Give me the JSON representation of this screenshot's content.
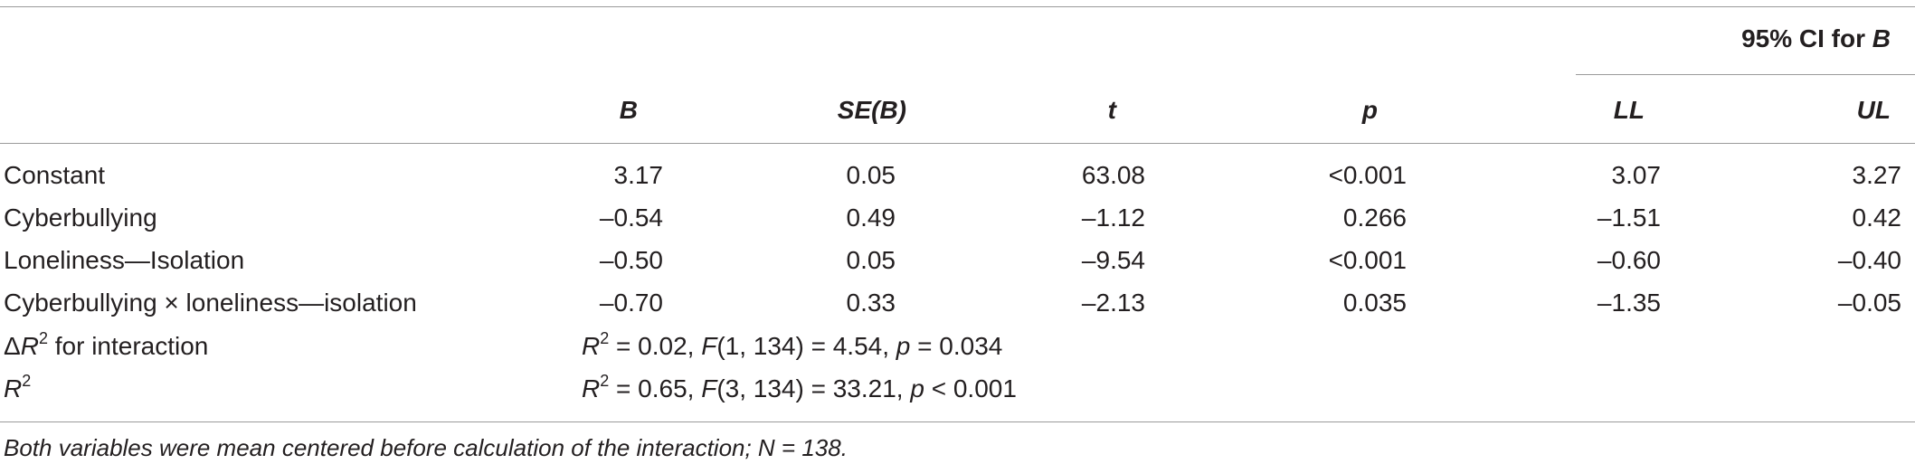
{
  "table": {
    "header": {
      "ci_group": [
        "95% CI for ",
        "B"
      ],
      "columns": [
        "B",
        "SE(B)",
        "t",
        "p",
        "LL",
        "UL"
      ]
    },
    "rows": [
      {
        "label": "Constant",
        "cells": [
          "3.17",
          "0.05",
          "63.08",
          "<0.001",
          "3.07",
          "3.27"
        ]
      },
      {
        "label": "Cyberbullying",
        "cells": [
          "–0.54",
          "0.49",
          "–1.12",
          "0.266",
          "–1.51",
          "0.42"
        ]
      },
      {
        "label": "Loneliness—Isolation",
        "cells": [
          "–0.50",
          "0.05",
          "–9.54",
          "<0.001",
          "–0.60",
          "–0.40"
        ]
      },
      {
        "label": "Cyberbullying × loneliness—isolation",
        "cells": [
          "–0.70",
          "0.33",
          "–2.13",
          "0.035",
          "–1.35",
          "–0.05"
        ]
      }
    ],
    "summary_rows": [
      {
        "label": [
          "Δ",
          "R",
          "2",
          " for interaction"
        ],
        "text": [
          "R",
          "2",
          " = 0.02, ",
          "F",
          "(1, 134) = 4.54, ",
          "p",
          " = 0.034"
        ]
      },
      {
        "label": [
          "R",
          "2"
        ],
        "text": [
          "R",
          "2",
          " = 0.65, ",
          "F",
          "(3, 134) = 33.21, ",
          "p",
          " < 0.001"
        ]
      }
    ]
  },
  "footnote": "Both variables were mean centered before calculation of the interaction; N = 138."
}
